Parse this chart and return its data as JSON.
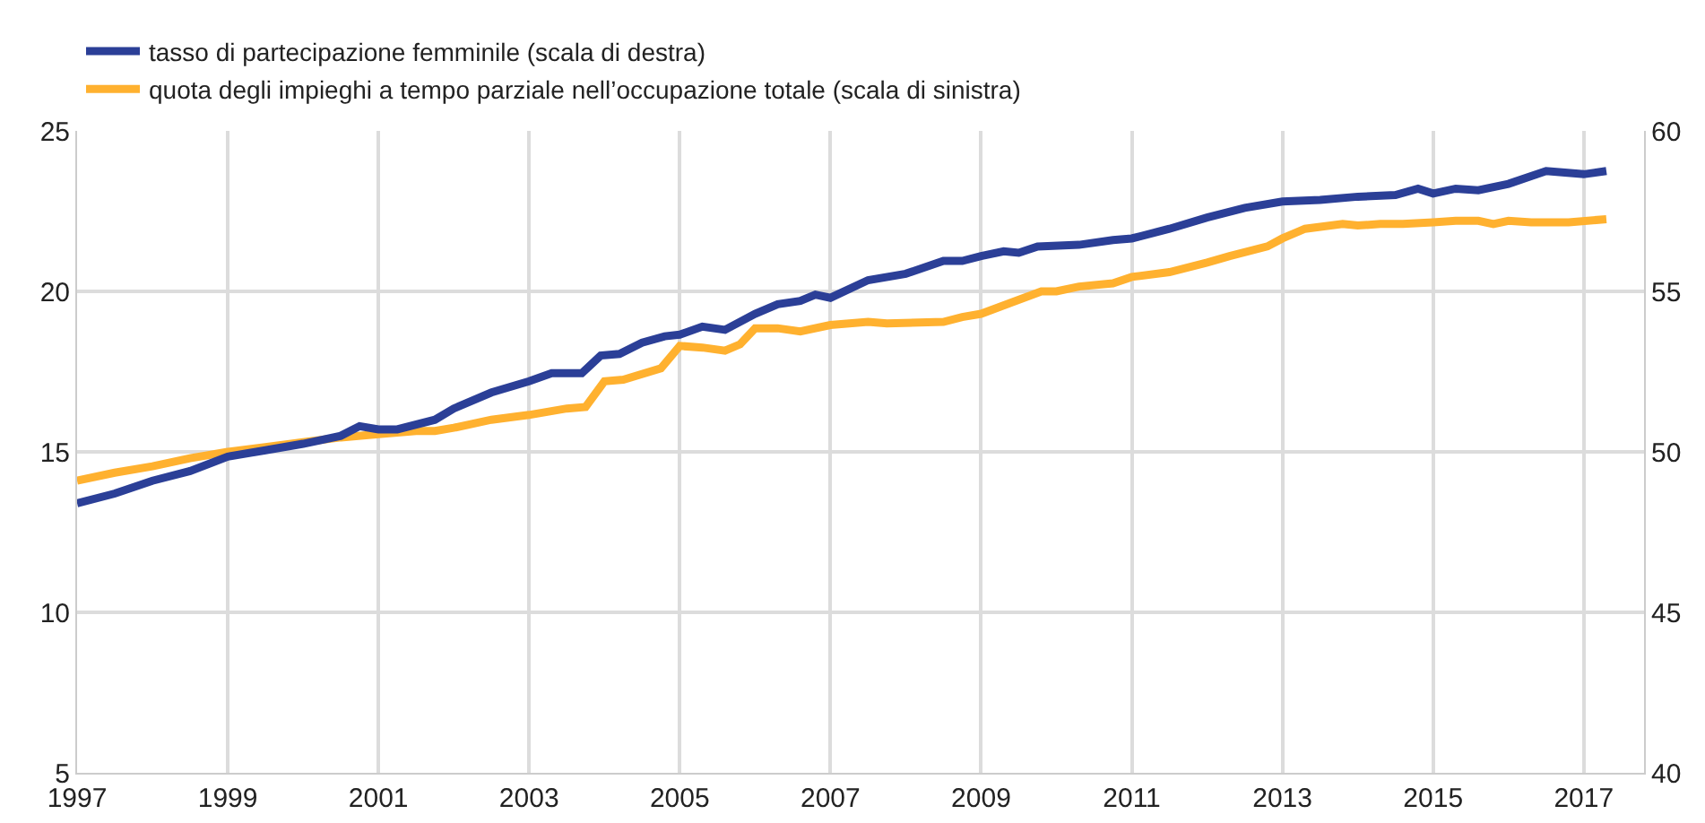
{
  "chart_data": {
    "type": "line",
    "legend": "top left",
    "grid": true,
    "line_style": "solid",
    "marker": "none",
    "xlim": [
      1997,
      2017.8
    ],
    "xticks": [
      1997,
      1999,
      2001,
      2003,
      2005,
      2007,
      2009,
      2011,
      2013,
      2015,
      2017
    ],
    "ylim": [
      5,
      25
    ],
    "yticks": [
      5,
      10,
      15,
      20,
      25
    ],
    "y2lim": [
      40,
      60
    ],
    "y2ticks": [
      40,
      45,
      50,
      55,
      60
    ],
    "series": [
      {
        "name": "tasso di partecipazione femminile (scala di destra)",
        "color": "#2b3f97",
        "axis": "y2",
        "x": [
          1997.0,
          1997.5,
          1998.0,
          1998.5,
          1999.0,
          1999.5,
          2000.0,
          2000.5,
          2000.75,
          2001.0,
          2001.25,
          2001.75,
          2002.0,
          2002.5,
          2003.0,
          2003.3,
          2003.7,
          2003.95,
          2004.2,
          2004.5,
          2004.8,
          2005.0,
          2005.3,
          2005.6,
          2006.0,
          2006.3,
          2006.6,
          2006.8,
          2007.0,
          2007.5,
          2008.0,
          2008.5,
          2008.75,
          2009.0,
          2009.3,
          2009.5,
          2009.75,
          2010.3,
          2010.75,
          2011.0,
          2011.5,
          2012.0,
          2012.5,
          2013.0,
          2013.5,
          2014.0,
          2014.5,
          2014.8,
          2015.0,
          2015.3,
          2015.6,
          2016.0,
          2016.5,
          2016.75,
          2017.0,
          2017.3
        ],
        "values": [
          48.4,
          48.7,
          49.1,
          49.4,
          49.85,
          50.05,
          50.25,
          50.5,
          50.8,
          50.7,
          50.7,
          51.0,
          51.35,
          51.85,
          52.2,
          52.45,
          52.45,
          53.0,
          53.05,
          53.4,
          53.6,
          53.65,
          53.9,
          53.8,
          54.3,
          54.6,
          54.7,
          54.9,
          54.8,
          55.35,
          55.55,
          55.95,
          55.95,
          56.1,
          56.25,
          56.2,
          56.4,
          56.45,
          56.6,
          56.65,
          56.95,
          57.3,
          57.6,
          57.8,
          57.85,
          57.95,
          58.0,
          58.2,
          58.05,
          58.2,
          58.15,
          58.35,
          58.75,
          58.7,
          58.65,
          58.75
        ]
      },
      {
        "name": "quota degli impieghi a tempo parziale nell’occupazione totale (scala di sinistra)",
        "color": "#ffb12f",
        "x": [
          1997.0,
          1997.5,
          1998.0,
          1998.5,
          1999.0,
          1999.5,
          2000.0,
          2000.5,
          2001.0,
          2001.5,
          2001.75,
          2002.0,
          2002.5,
          2003.0,
          2003.5,
          2003.75,
          2004.0,
          2004.25,
          2004.75,
          2005.0,
          2005.3,
          2005.6,
          2005.8,
          2006.0,
          2006.3,
          2006.6,
          2007.0,
          2007.5,
          2007.75,
          2008.5,
          2008.75,
          2009.0,
          2009.4,
          2009.8,
          2010.0,
          2010.3,
          2010.75,
          2011.0,
          2011.5,
          2012.0,
          2012.3,
          2012.8,
          2013.0,
          2013.3,
          2013.8,
          2014.0,
          2014.3,
          2014.6,
          2015.0,
          2015.3,
          2015.6,
          2015.8,
          2016.0,
          2016.3,
          2016.8,
          2017.3
        ],
        "values": [
          14.1,
          14.35,
          14.55,
          14.8,
          15.0,
          15.15,
          15.3,
          15.45,
          15.55,
          15.65,
          15.65,
          15.75,
          16.0,
          16.15,
          16.35,
          16.4,
          17.2,
          17.25,
          17.6,
          18.3,
          18.25,
          18.15,
          18.35,
          18.85,
          18.85,
          18.75,
          18.95,
          19.05,
          19.0,
          19.05,
          19.2,
          19.3,
          19.65,
          20.0,
          20.0,
          20.15,
          20.25,
          20.45,
          20.6,
          20.9,
          21.1,
          21.4,
          21.65,
          21.95,
          22.1,
          22.05,
          22.1,
          22.1,
          22.15,
          22.2,
          22.2,
          22.1,
          22.2,
          22.15,
          22.15,
          22.25
        ]
      }
    ]
  }
}
